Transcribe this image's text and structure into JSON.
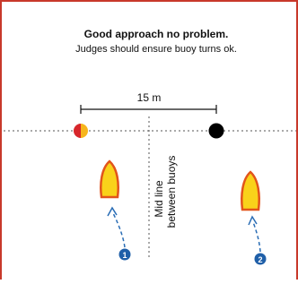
{
  "header": {
    "title": "Good approach no problem.",
    "subtitle": "Judges should ensure buoy turns ok."
  },
  "distance_label": "15 m",
  "midline_label": [
    "Mid line",
    "between buoys"
  ],
  "boats": [
    {
      "label": "1"
    },
    {
      "label": "2"
    }
  ]
}
